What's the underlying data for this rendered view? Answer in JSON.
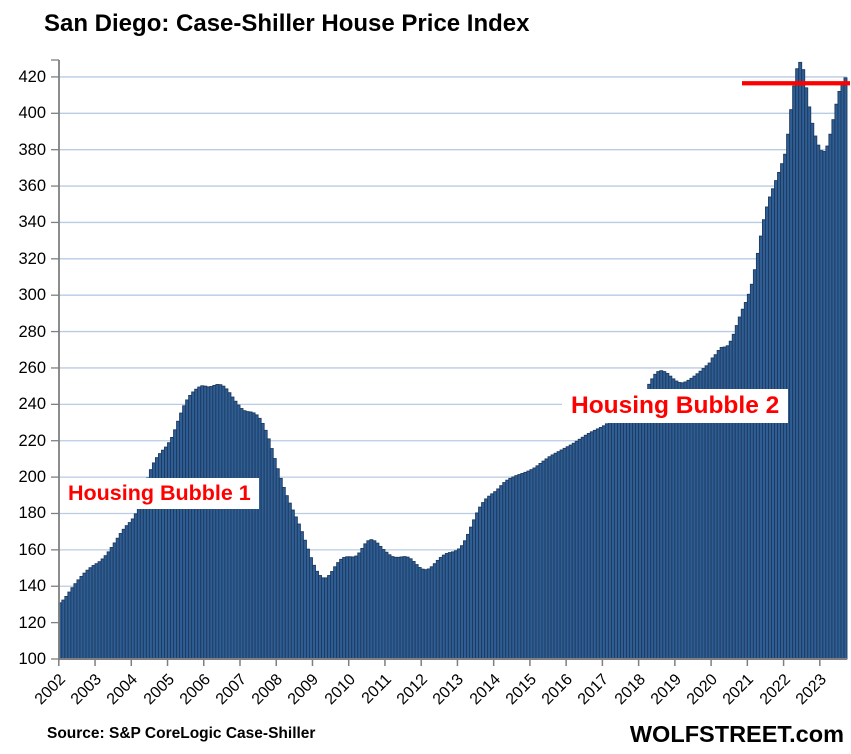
{
  "title": "San Diego: Case-Shiller House Price Index",
  "source": "Source: S&P CoreLogic Case-Shiller",
  "watermark": "WOLFSTREET.com",
  "annotations": {
    "bubble1": "Housing Bubble 1",
    "bubble2": "Housing Bubble 2"
  },
  "colors": {
    "bar_fill": "#2E5E94",
    "bar_border": "#1E3A5F",
    "gridline": "#B8CCE4",
    "axis": "#7F7F7F",
    "red_line": "#FF0000",
    "annotation_text": "#FF0000"
  },
  "chart_data": {
    "type": "bar",
    "title": "San Diego: Case-Shiller House Price Index",
    "xlabel": "",
    "ylabel": "",
    "frequency": "monthly",
    "x_start": "2002-01",
    "x_end": "2023-09",
    "x_tick_labels": [
      "2002",
      "2003",
      "2004",
      "2005",
      "2006",
      "2007",
      "2008",
      "2009",
      "2010",
      "2011",
      "2012",
      "2013",
      "2014",
      "2015",
      "2016",
      "2017",
      "2018",
      "2019",
      "2020",
      "2021",
      "2022",
      "2023"
    ],
    "y_ticks": [
      100,
      120,
      140,
      160,
      180,
      200,
      220,
      240,
      260,
      280,
      300,
      320,
      340,
      360,
      380,
      400,
      420
    ],
    "ylim": [
      100,
      432
    ],
    "grid": true,
    "reference_line": {
      "value": 416.5,
      "starts_at": "2020-11",
      "color": "#FF0000"
    },
    "values": [
      130.9,
      132.4,
      134.4,
      136.8,
      139.2,
      141.4,
      143.5,
      145.4,
      147.2,
      148.8,
      150.2,
      151.4,
      152.4,
      153.5,
      155.0,
      156.8,
      158.9,
      161.3,
      163.8,
      166.4,
      169.0,
      171.3,
      173.3,
      175.0,
      177.0,
      179.8,
      183.8,
      188.8,
      194.2,
      199.5,
      204.1,
      207.8,
      210.7,
      212.9,
      214.8,
      216.5,
      218.9,
      221.8,
      226.0,
      230.7,
      235.2,
      239.2,
      242.4,
      244.9,
      246.8,
      248.3,
      249.5,
      250.2,
      250.0,
      249.6,
      249.8,
      250.4,
      250.9,
      250.8,
      250.0,
      248.5,
      246.4,
      244.0,
      241.7,
      239.6,
      237.7,
      236.5,
      236.0,
      235.8,
      235.3,
      234.2,
      232.3,
      229.5,
      225.7,
      221.0,
      215.7,
      210.2,
      204.6,
      199.3,
      194.3,
      189.8,
      185.7,
      181.9,
      178.1,
      174.2,
      170.0,
      165.3,
      160.4,
      155.7,
      151.5,
      148.2,
      145.9,
      144.6,
      144.6,
      145.9,
      148.1,
      150.7,
      153.0,
      154.8,
      155.8,
      156.2,
      156.2,
      156.1,
      156.6,
      158.3,
      160.8,
      163.3,
      165.0,
      165.6,
      165.0,
      163.7,
      161.9,
      160.2,
      158.7,
      157.3,
      156.3,
      155.9,
      155.9,
      156.1,
      156.3,
      156.0,
      155.1,
      153.6,
      151.9,
      150.3,
      149.4,
      149.1,
      149.5,
      150.7,
      152.4,
      154.2,
      155.8,
      157.1,
      158.0,
      158.5,
      158.9,
      159.5,
      160.5,
      162.3,
      165.0,
      168.5,
      172.5,
      176.5,
      180.3,
      183.5,
      186.0,
      188.0,
      189.5,
      190.8,
      192.0,
      193.5,
      195.3,
      197.0,
      198.3,
      199.3,
      200.1,
      200.8,
      201.4,
      202.0,
      202.6,
      203.3,
      204.1,
      205.0,
      206.2,
      207.5,
      208.8,
      210.0,
      211.2,
      212.2,
      213.1,
      214.0,
      214.9,
      215.8,
      216.7,
      217.6,
      218.6,
      219.7,
      220.8,
      221.9,
      223.0,
      224.0,
      224.9,
      225.7,
      226.5,
      227.3,
      228.2,
      229.3,
      230.6,
      232.0,
      233.4,
      234.7,
      235.9,
      237.0,
      238.0,
      238.9,
      239.8,
      240.8,
      242.5,
      245.0,
      248.0,
      251.0,
      254.0,
      256.5,
      258.0,
      258.5,
      258.0,
      257.0,
      255.5,
      254.0,
      252.8,
      252.0,
      251.8,
      252.3,
      253.2,
      254.3,
      255.5,
      256.8,
      258.2,
      259.7,
      261.2,
      262.7,
      265.5,
      267.3,
      269.6,
      271.3,
      271.5,
      272.2,
      274.7,
      278.5,
      283.3,
      288.0,
      292.3,
      296.0,
      300.5,
      306.0,
      314.0,
      323.0,
      332.5,
      341.5,
      348.5,
      354.0,
      358.5,
      363.0,
      367.5,
      372.3,
      377.5,
      388.5,
      402.0,
      415.0,
      424.5,
      428.0,
      424.0,
      414.0,
      403.5,
      394.5,
      387.5,
      382.5,
      379.5,
      379.0,
      382.0,
      388.5,
      396.5,
      405.0,
      412.0,
      417.0,
      419.5
    ]
  }
}
